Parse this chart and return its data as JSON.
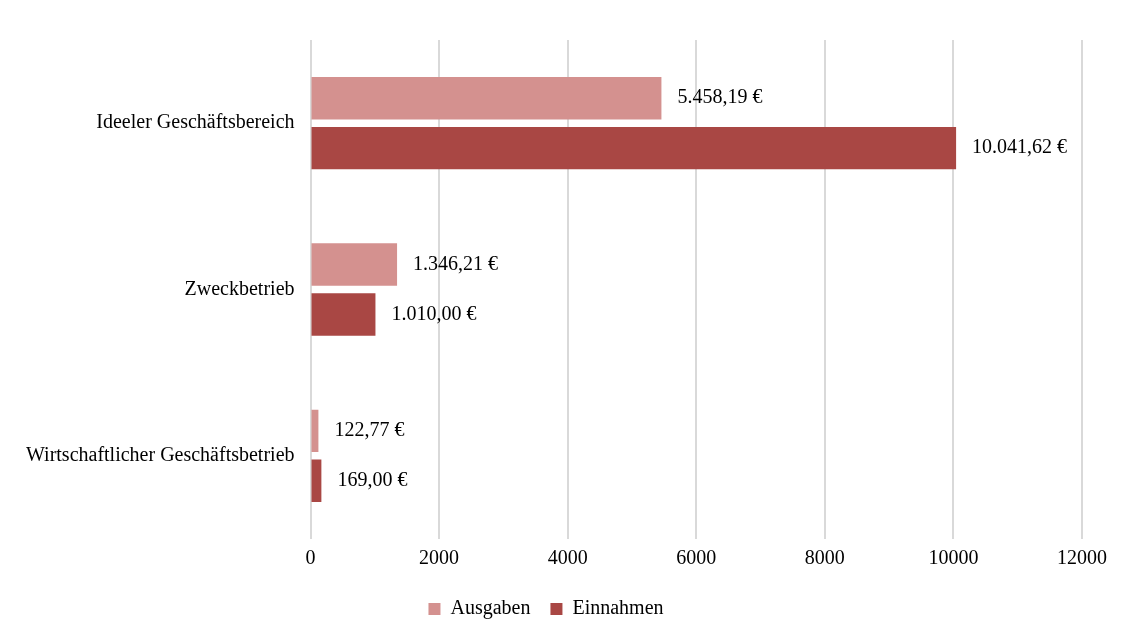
{
  "chart_data": {
    "type": "bar",
    "orientation": "horizontal",
    "categories": [
      "Ideeler Geschäftsbereich",
      "Zweckbetrieb",
      "Wirtschaftlicher Geschäftsbetrieb"
    ],
    "series": [
      {
        "name": "Ausgaben",
        "color": "#d4918f",
        "values": [
          5458.19,
          1346.21,
          122.77
        ],
        "value_labels": [
          "5.458,19 €",
          "1.346,21 €",
          "122,77 €"
        ]
      },
      {
        "name": "Einnahmen",
        "color": "#a94744",
        "values": [
          10041.62,
          1010.0,
          169.0
        ],
        "value_labels": [
          "10.041,62 €",
          "1.010,00 €",
          "169,00 €"
        ]
      }
    ],
    "xlim": [
      0,
      12000
    ],
    "xticks": [
      0,
      2000,
      4000,
      6000,
      8000,
      10000,
      12000
    ],
    "grid": "x",
    "legend": "bottom"
  }
}
